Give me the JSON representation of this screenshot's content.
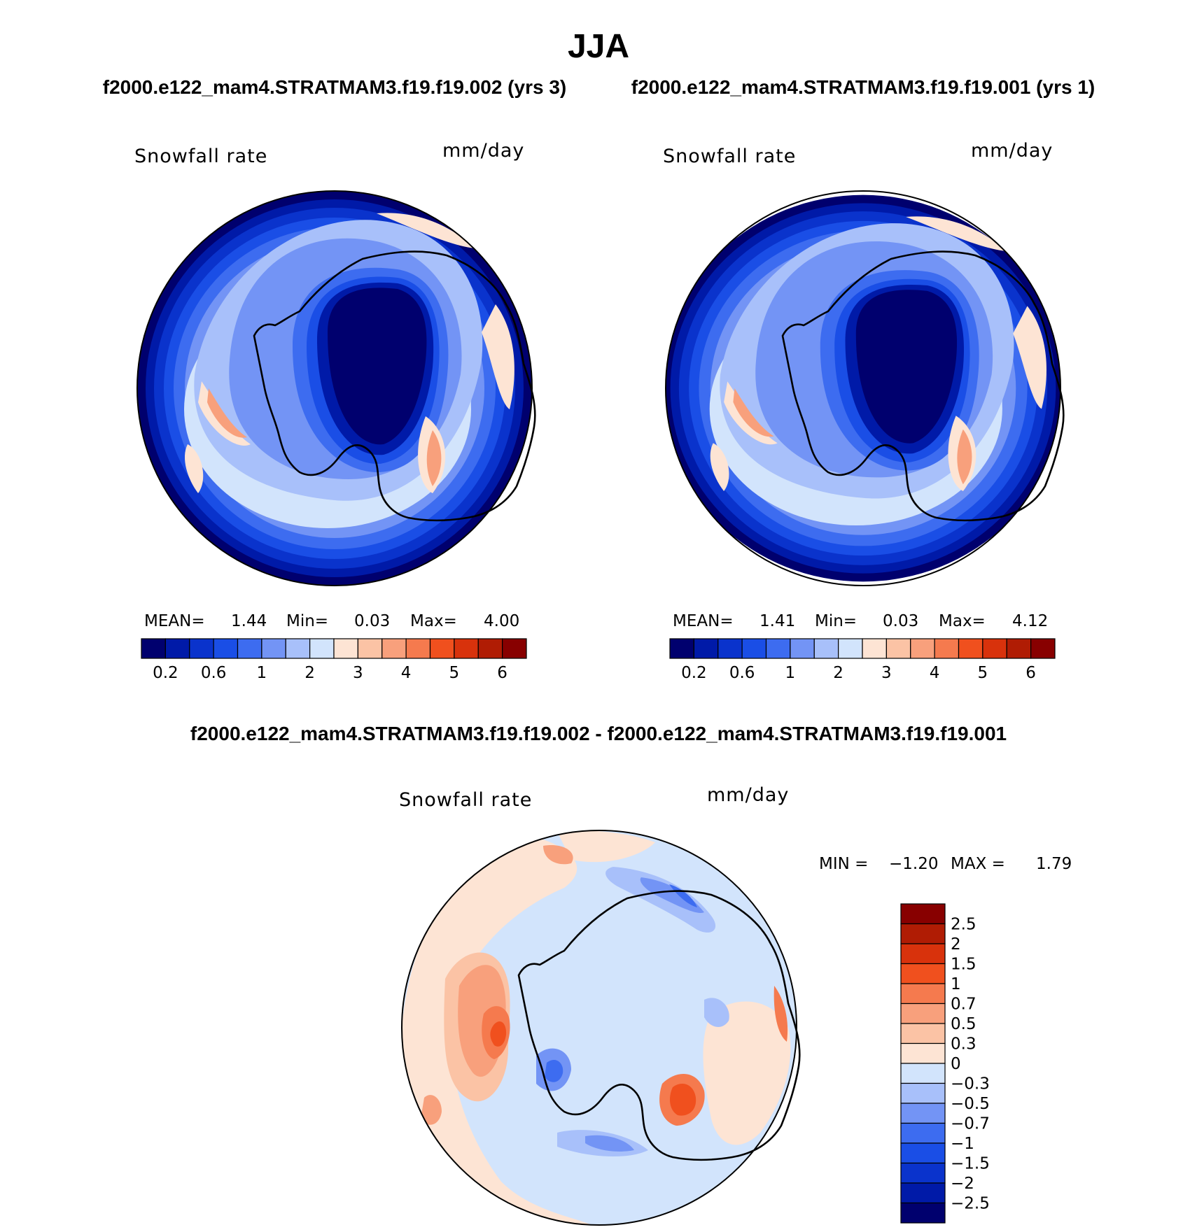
{
  "figure": {
    "title": "JJA",
    "subtitle_left": "f2000.e122_mam4.STRATMAM3.f19.f19.002 (yrs 3)",
    "subtitle_right": "f2000.e122_mam4.STRATMAM3.f19.f19.001 (yrs 1)",
    "diff_title": "f2000.e122_mam4.STRATMAM3.f19.f19.002 - f2000.e122_mam4.STRATMAM3.f19.f19.001"
  },
  "chart_data": [
    {
      "type": "heatmap",
      "projection": "south-polar-stereographic",
      "variable": "Snowfall rate",
      "units": "mm/day",
      "stats": {
        "mean_label": "MEAN=",
        "mean": "1.44",
        "min_label": "Min=",
        "min": "0.03",
        "max_label": "Max=",
        "max": "4.00"
      },
      "contour_levels": [
        0.2,
        0.4,
        0.6,
        0.8,
        1,
        1.5,
        2,
        2.5,
        3,
        3.5,
        4,
        4.5,
        5,
        5.5,
        6
      ],
      "colorbar_tick_labels": [
        "0.2",
        "0.6",
        "1",
        "2",
        "3",
        "4",
        "5",
        "6"
      ],
      "colorbar_tick_levels": [
        0.2,
        0.6,
        1,
        2,
        3,
        4,
        5,
        6
      ],
      "colorbar_orientation": "horizontal"
    },
    {
      "type": "heatmap",
      "projection": "south-polar-stereographic",
      "variable": "Snowfall rate",
      "units": "mm/day",
      "stats": {
        "mean_label": "MEAN=",
        "mean": "1.41",
        "min_label": "Min=",
        "min": "0.03",
        "max_label": "Max=",
        "max": "4.12"
      },
      "contour_levels": [
        0.2,
        0.4,
        0.6,
        0.8,
        1,
        1.5,
        2,
        2.5,
        3,
        3.5,
        4,
        4.5,
        5,
        5.5,
        6
      ],
      "colorbar_tick_labels": [
        "0.2",
        "0.6",
        "1",
        "2",
        "3",
        "4",
        "5",
        "6"
      ],
      "colorbar_tick_levels": [
        0.2,
        0.6,
        1,
        2,
        3,
        4,
        5,
        6
      ],
      "colorbar_orientation": "horizontal"
    },
    {
      "type": "heatmap",
      "projection": "south-polar-stereographic",
      "variable": "Snowfall rate",
      "units": "mm/day",
      "stats": {
        "min_label": "MIN =",
        "min": "−1.20",
        "max_label": "MAX =",
        "max": "1.79"
      },
      "contour_levels": [
        -2.5,
        -2,
        -1.5,
        -1,
        -0.7,
        -0.5,
        -0.3,
        0,
        0.3,
        0.5,
        0.7,
        1,
        1.5,
        2,
        2.5
      ],
      "colorbar_tick_labels": [
        "2.5",
        "2",
        "1.5",
        "1",
        "0.7",
        "0.5",
        "0.3",
        "0",
        "−0.3",
        "−0.5",
        "−0.7",
        "−1",
        "−1.5",
        "−2",
        "−2.5"
      ],
      "colorbar_orientation": "vertical"
    }
  ],
  "colors": {
    "mean_palette": [
      "#00006e",
      "#001aa8",
      "#0a33cc",
      "#1a4ee6",
      "#3d6cf0",
      "#7394f5",
      "#a8c0fa",
      "#d2e4fc",
      "#fde4d4",
      "#fbc3a5",
      "#f8a07c",
      "#f57a4e",
      "#f0501e",
      "#d8320c",
      "#b01c04",
      "#880000"
    ],
    "diff_palette_top_to_bottom": [
      "#880000",
      "#b01c04",
      "#d8320c",
      "#f0501e",
      "#f57a4e",
      "#f8a07c",
      "#fbc3a5",
      "#fde4d4",
      "#d2e4fc",
      "#a8c0fa",
      "#7394f5",
      "#3d6cf0",
      "#1a4ee6",
      "#0a33cc",
      "#001aa8",
      "#00006e"
    ],
    "coastline": "#000000",
    "ocean_base": "#d2e4fc"
  }
}
